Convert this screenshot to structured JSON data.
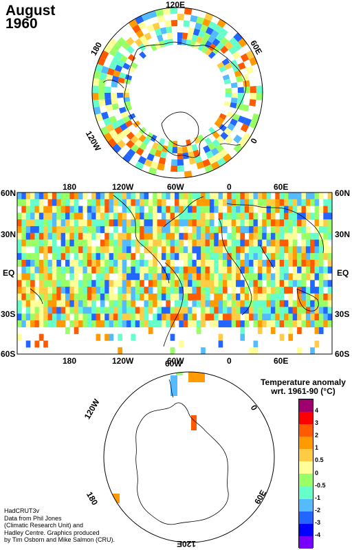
{
  "title": {
    "month": "August",
    "year": "1960"
  },
  "north_polar": {
    "labels": {
      "top": "120E",
      "right": "60E",
      "left": "180",
      "lower_left": "120W",
      "lower_right": "0"
    }
  },
  "global_map": {
    "lat_labels": {
      "n60": "60N",
      "n30": "30N",
      "eq": "EQ",
      "s30": "30S",
      "s60": "60S"
    },
    "lon_labels_top": [
      "180",
      "120W",
      "60W",
      "0",
      "60E"
    ],
    "lon_labels_bottom": [
      "180",
      "120W",
      "60W",
      "0",
      "60E"
    ]
  },
  "south_polar": {
    "labels": {
      "top": "60W",
      "upper_left": "120W",
      "upper_right": "0",
      "lower_left": "180",
      "lower_right": "60E",
      "bottom": "120E"
    }
  },
  "legend": {
    "title_line1": "Temperature anomaly",
    "title_line2": "wrt. 1961-90  (°C)",
    "ticks": [
      "4",
      "3",
      "2",
      "1",
      "0.5",
      "0",
      "-0.5",
      "-1",
      "-2",
      "-3",
      "-4"
    ],
    "colors": [
      "#a0006e",
      "#ff0000",
      "#ff5a00",
      "#ff9a00",
      "#ffcc44",
      "#ffff99",
      "#99ff66",
      "#66ffcc",
      "#55bbff",
      "#2266ff",
      "#0000ff",
      "#7700ff"
    ]
  },
  "credits": {
    "line1": "HadCRUT3v",
    "line2": "Data from Phil Jones",
    "line3": "(Climatic Research Unit) and",
    "line4": "Hadley Centre.  Graphics produced",
    "line5": "by Tim Osborn and Mike Salmon (CRU)."
  }
}
